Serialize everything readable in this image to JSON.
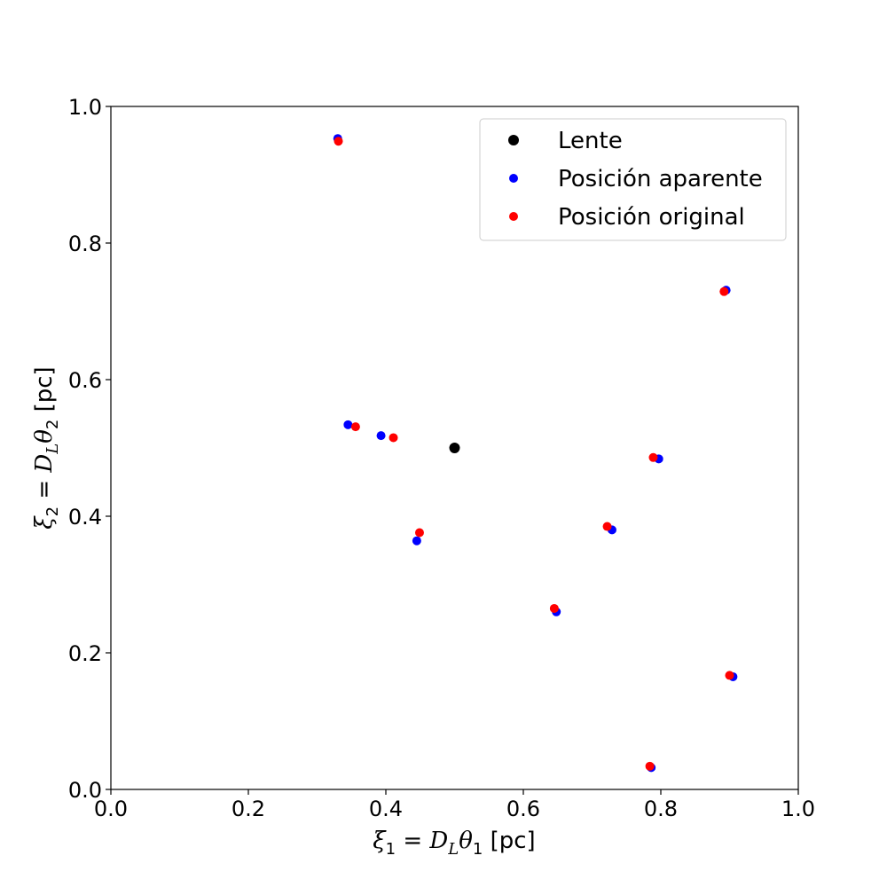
{
  "chart_data": {
    "type": "scatter",
    "title": "",
    "xlabel": {
      "var": "ξ",
      "var_sub": "1",
      "eq": " = ",
      "D": "D",
      "D_sub": "L",
      "theta": "θ",
      "theta_sub": "1",
      "unit": " [pc]",
      "text": "ξ1 = DLθ1 [pc]"
    },
    "ylabel": {
      "var": "ξ",
      "var_sub": "2",
      "eq": " = ",
      "D": "D",
      "D_sub": "L",
      "theta": "θ",
      "theta_sub": "2",
      "unit": " [pc]",
      "text": "ξ2 = DLθ2 [pc]"
    },
    "xlim": [
      0.0,
      1.0
    ],
    "ylim": [
      0.0,
      1.0
    ],
    "xticks": [
      "0.0",
      "0.2",
      "0.4",
      "0.6",
      "0.8",
      "1.0"
    ],
    "yticks": [
      "0.0",
      "0.2",
      "0.4",
      "0.6",
      "0.8",
      "1.0"
    ],
    "grid": false,
    "legend_position": "top-right",
    "series": [
      {
        "name": "Lente",
        "color": "#000000",
        "marker": "large-dot",
        "points": [
          [
            0.5,
            0.5
          ]
        ]
      },
      {
        "name": "Posición aparente",
        "color": "#0000ff",
        "marker": "dot",
        "points": [
          [
            0.33,
            0.953
          ],
          [
            0.895,
            0.731
          ],
          [
            0.345,
            0.534
          ],
          [
            0.393,
            0.518
          ],
          [
            0.797,
            0.484
          ],
          [
            0.729,
            0.38
          ],
          [
            0.445,
            0.364
          ],
          [
            0.648,
            0.26
          ],
          [
            0.905,
            0.165
          ],
          [
            0.786,
            0.032
          ]
        ]
      },
      {
        "name": "Posición original",
        "color": "#ff0000",
        "marker": "dot",
        "points": [
          [
            0.331,
            0.949
          ],
          [
            0.892,
            0.729
          ],
          [
            0.356,
            0.531
          ],
          [
            0.411,
            0.515
          ],
          [
            0.789,
            0.486
          ],
          [
            0.722,
            0.385
          ],
          [
            0.449,
            0.376
          ],
          [
            0.645,
            0.265
          ],
          [
            0.9,
            0.167
          ],
          [
            0.784,
            0.034
          ]
        ]
      }
    ]
  }
}
